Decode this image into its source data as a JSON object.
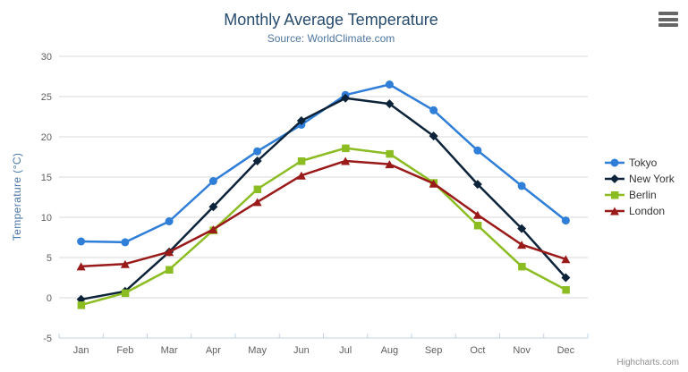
{
  "header": {
    "title": "Monthly Average Temperature",
    "subtitle": "Source: WorldClimate.com"
  },
  "toolbar": {
    "menu_icon": "hamburger-export-menu"
  },
  "credits_label": "Highcharts.com",
  "chart_data": {
    "type": "line",
    "title": "Monthly Average Temperature",
    "subtitle": "Source: WorldClimate.com",
    "categories": [
      "Jan",
      "Feb",
      "Mar",
      "Apr",
      "May",
      "Jun",
      "Jul",
      "Aug",
      "Sep",
      "Oct",
      "Nov",
      "Dec"
    ],
    "series": [
      {
        "name": "Tokyo",
        "marker": "circle",
        "color": "#2f7ed8",
        "values": [
          7.0,
          6.9,
          9.5,
          14.5,
          18.2,
          21.5,
          25.2,
          26.5,
          23.3,
          18.3,
          13.9,
          9.6
        ]
      },
      {
        "name": "New York",
        "marker": "diamond",
        "color": "#0d233a",
        "values": [
          -0.2,
          0.8,
          5.7,
          11.3,
          17.0,
          22.0,
          24.8,
          24.1,
          20.1,
          14.1,
          8.6,
          2.5
        ]
      },
      {
        "name": "Berlin",
        "marker": "square",
        "color": "#8bbc21",
        "values": [
          -0.9,
          0.6,
          3.5,
          8.4,
          13.5,
          17.0,
          18.6,
          17.9,
          14.3,
          9.0,
          3.9,
          1.0
        ]
      },
      {
        "name": "London",
        "marker": "triangle",
        "color": "#9a1919",
        "values": [
          3.9,
          4.2,
          5.7,
          8.5,
          11.9,
          15.2,
          17.0,
          16.6,
          14.2,
          10.3,
          6.6,
          4.8
        ]
      }
    ],
    "xlabel": "",
    "ylabel": "Temperature (°C)",
    "ylim": [
      -5,
      30
    ],
    "ytick_step": 5,
    "yticks": [
      "-5",
      "0",
      "5",
      "10",
      "15",
      "20",
      "25",
      "30"
    ],
    "grid": true,
    "legend_position": "right",
    "style": {
      "grid_color": "#d8d8d8",
      "axis_line_color": "#c0d0e0",
      "axis_label_color": "#606060",
      "axis_title_color": "#4976a8",
      "title_color": "#274b6d",
      "subtitle_color": "#4d759e",
      "legend_text_color": "#333333",
      "credits_color": "#909090"
    }
  }
}
